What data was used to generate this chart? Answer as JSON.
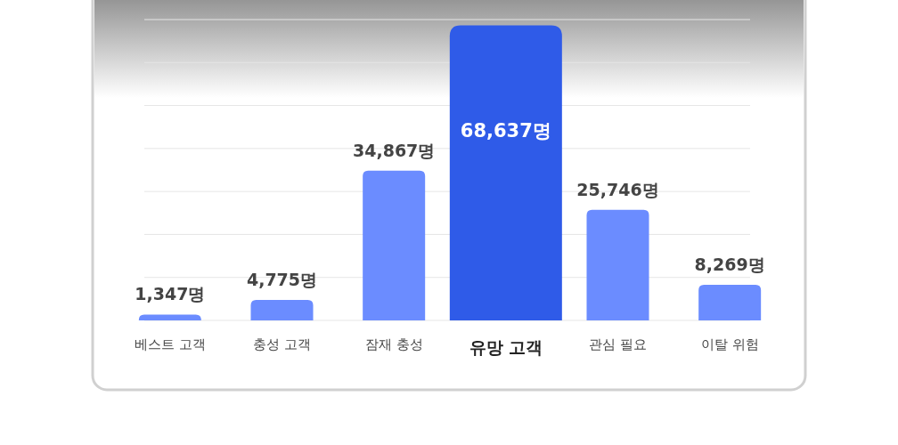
{
  "chart_data": {
    "type": "bar",
    "categories": [
      "베스트 고객",
      "충성 고객",
      "잠재 충성",
      "유망 고객",
      "관심 필요",
      "이탈 위험"
    ],
    "values": [
      1347,
      4775,
      34867,
      68637,
      25746,
      8269
    ],
    "value_labels": [
      "1,347명",
      "4,775명",
      "34,867명",
      "68,637명",
      "25,746명",
      "8,269명"
    ],
    "colors": [
      "#6b8cff",
      "#6b8cff",
      "#6b8cff",
      "#2f5be8",
      "#6b8cff",
      "#6b8cff"
    ],
    "ylim": [
      0,
      70000
    ],
    "yticks": [
      {
        "value": 0,
        "label": null
      },
      {
        "value": 10000,
        "label": null
      },
      {
        "value": 20000,
        "label": null
      },
      {
        "value": 30000,
        "label": null
      },
      {
        "value": 40000,
        "label": null
      },
      {
        "value": 50000,
        "label": null
      },
      {
        "value": 60000,
        "label": null
      },
      {
        "value": 70000,
        "label": null
      }
    ],
    "grid": "y"
  }
}
